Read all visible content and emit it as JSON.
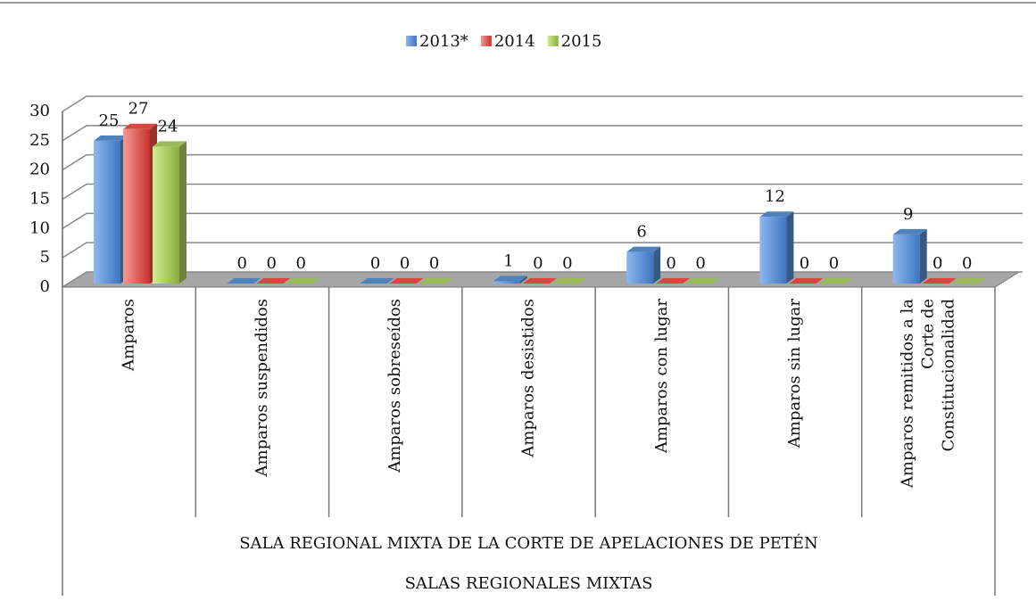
{
  "chart_data": {
    "type": "bar3d",
    "categories": [
      "Amparos",
      "Amparos suspendidos",
      "Amparos sobreseídos",
      "Amparos desistidos",
      "Amparos con lugar",
      "Amparos sin lugar",
      "Amparos remitidos  a la Corte de Constitucionalidad"
    ],
    "category_groups": [
      "SALA REGIONAL MIXTA DE LA CORTE DE APELACIONES DE PETÉN",
      "SALAS REGIONALES MIXTAS"
    ],
    "series": [
      {
        "name": "2013*",
        "color": "#4f81bd",
        "values": [
          25,
          0,
          0,
          1,
          6,
          12,
          9
        ]
      },
      {
        "name": "2014",
        "color": "#d9463f",
        "values": [
          27,
          0,
          0,
          0,
          0,
          0,
          0
        ]
      },
      {
        "name": "2015",
        "color": "#9bbb59",
        "values": [
          24,
          0,
          0,
          0,
          0,
          0,
          0
        ]
      }
    ],
    "ylim": [
      0,
      30
    ],
    "yticks": [
      0,
      5,
      10,
      15,
      20,
      25,
      30
    ],
    "grid": true,
    "legend": "top"
  }
}
